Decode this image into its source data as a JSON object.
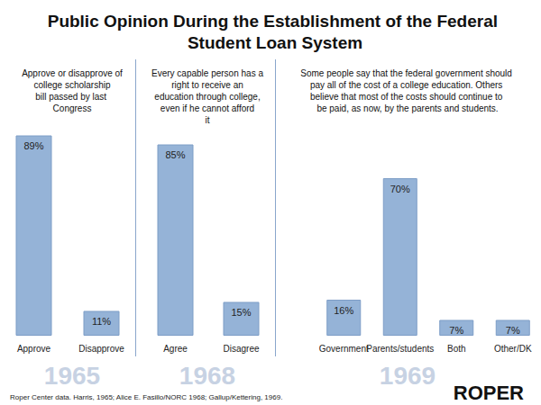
{
  "title": "Public Opinion During the Establishment of the Federal Student Loan System",
  "source": "Roper Center data. Harris, 1965; Alice E. Fasillo/NORC 1968; Gallup/Kettering, 1969.",
  "logo": "ROPER",
  "chart_data": [
    {
      "type": "bar",
      "title": "Approve or disapprove of college scholarship bill passed by last Congress",
      "xlabel": "1965",
      "categories": [
        "Approve",
        "Disapprove"
      ],
      "values": [
        89,
        11
      ],
      "value_labels": [
        "89%",
        "11%"
      ],
      "color": "#95b3d7",
      "data_labels": true,
      "tick_labels": "x"
    },
    {
      "type": "bar",
      "title": "Every capable person has a right to receive an education through college, even if he cannot afford it",
      "xlabel": "1968",
      "categories": [
        "Agree",
        "Disagree"
      ],
      "values": [
        85,
        15
      ],
      "value_labels": [
        "85%",
        "15%"
      ],
      "color": "#95b3d7",
      "data_labels": true,
      "tick_labels": "x"
    },
    {
      "type": "bar",
      "title": "Some people say that the federal government should pay all of the cost of a college education. Others believe that most of the costs should continue to be paid, as now, by the parents and students.",
      "xlabel": "1969",
      "categories": [
        "Government",
        "Parents/students",
        "Both",
        "Other/DK"
      ],
      "values": [
        16,
        70,
        7,
        7
      ],
      "value_labels": [
        "16%",
        "70%",
        "7%",
        "7%"
      ],
      "color": "#95b3d7",
      "data_labels": true,
      "tick_labels": "x"
    }
  ]
}
